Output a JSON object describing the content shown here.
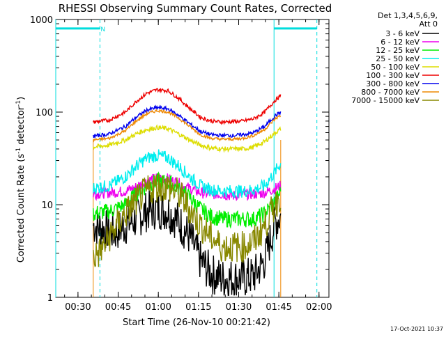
{
  "chart_data": {
    "type": "line",
    "title": "RHESSI Observing Summary Count Rates, Corrected",
    "xlabel": "Start Time (26-Nov-10 00:21:42)",
    "ylabel_main": "Corrected Count Rate (s",
    "ylabel_sup1": "-1",
    "ylabel_mid": " detector",
    "ylabel_sup2": "-1",
    "ylabel_end": ")",
    "yscale": "log",
    "ylim": [
      1,
      1000
    ],
    "y_ticks": [
      {
        "value": 1,
        "label": "1"
      },
      {
        "value": 10,
        "label": "10"
      },
      {
        "value": 100,
        "label": "100"
      },
      {
        "value": 1000,
        "label": "1000"
      }
    ],
    "x_range_min": [
      0,
      102
    ],
    "x_ticks": [
      {
        "t": 8.3,
        "label": "00:30"
      },
      {
        "t": 23.3,
        "label": "00:45"
      },
      {
        "t": 38.3,
        "label": "01:00"
      },
      {
        "t": 53.3,
        "label": "01:15"
      },
      {
        "t": 68.3,
        "label": "01:30"
      },
      {
        "t": 83.3,
        "label": "01:45"
      },
      {
        "t": 98.3,
        "label": "02:00"
      }
    ],
    "legend_header": [
      "Det 1,3,4,5,6,9,",
      "Att 0"
    ],
    "legend_position": "right",
    "series": [
      {
        "name": "3 - 6 keV",
        "color": "#000000",
        "x": [
          14,
          18,
          22,
          26,
          30,
          34,
          38,
          42,
          46,
          50,
          54,
          58,
          62,
          66,
          70,
          74,
          78,
          82,
          84
        ],
        "y": [
          6,
          5.5,
          5,
          6,
          7,
          8.5,
          9,
          8.5,
          6.5,
          4.5,
          2.5,
          1.8,
          1.6,
          1.6,
          1.6,
          1.7,
          2.5,
          6.5,
          7.5
        ]
      },
      {
        "name": "6 - 12 keV",
        "color": "#ee00ee",
        "x": [
          14,
          20,
          26,
          30,
          34,
          38,
          42,
          46,
          50,
          54,
          58,
          62,
          66,
          70,
          74,
          78,
          82,
          84
        ],
        "y": [
          13,
          13.5,
          14,
          15.5,
          18,
          19.5,
          19,
          17,
          15,
          13.5,
          13,
          13,
          12.5,
          13,
          13,
          13.5,
          15,
          16
        ]
      },
      {
        "name": "12 - 25 keV",
        "color": "#00ee00",
        "x": [
          14,
          20,
          26,
          30,
          34,
          38,
          42,
          46,
          50,
          54,
          58,
          62,
          66,
          70,
          74,
          78,
          82,
          84
        ],
        "y": [
          8,
          8.5,
          10,
          13,
          16,
          18,
          17.5,
          15,
          12,
          9,
          7.5,
          7,
          7,
          7,
          7,
          8,
          11,
          14
        ]
      },
      {
        "name": "25 - 50 keV",
        "color": "#00eeee",
        "x": [
          14,
          20,
          26,
          30,
          34,
          38,
          42,
          46,
          50,
          54,
          58,
          62,
          66,
          70,
          74,
          78,
          82,
          84
        ],
        "y": [
          15,
          16,
          20,
          26,
          32,
          34,
          32,
          26,
          20,
          16,
          14.5,
          14,
          14,
          14,
          14.5,
          16,
          23,
          28
        ]
      },
      {
        "name": "50 - 100 keV",
        "color": "#dddd00",
        "x": [
          14,
          20,
          26,
          30,
          34,
          38,
          42,
          46,
          50,
          54,
          58,
          62,
          66,
          70,
          74,
          78,
          82,
          84
        ],
        "y": [
          42,
          44,
          50,
          58,
          65,
          68,
          66,
          58,
          50,
          44,
          41,
          40,
          40,
          40,
          42,
          48,
          60,
          66
        ]
      },
      {
        "name": "100 - 300 keV",
        "color": "#ee0000",
        "x": [
          14,
          20,
          26,
          30,
          34,
          38,
          42,
          46,
          50,
          54,
          58,
          62,
          66,
          70,
          74,
          78,
          82,
          84
        ],
        "y": [
          78,
          82,
          100,
          130,
          160,
          175,
          170,
          140,
          110,
          88,
          80,
          78,
          79,
          80,
          85,
          100,
          135,
          150
        ]
      },
      {
        "name": "300 - 800 keV",
        "color": "#0000ee",
        "x": [
          14,
          20,
          26,
          30,
          34,
          38,
          42,
          46,
          50,
          54,
          58,
          62,
          66,
          70,
          74,
          78,
          82,
          84
        ],
        "y": [
          55,
          58,
          70,
          88,
          105,
          112,
          108,
          92,
          75,
          62,
          57,
          56,
          56,
          57,
          60,
          70,
          92,
          100
        ]
      },
      {
        "name": "800 - 7000 keV",
        "color": "#ee8800",
        "x": [
          14,
          20,
          26,
          30,
          34,
          38,
          42,
          46,
          50,
          54,
          58,
          62,
          66,
          70,
          74,
          78,
          82,
          84
        ],
        "y": [
          50,
          52,
          63,
          80,
          96,
          104,
          100,
          86,
          70,
          57,
          52,
          51,
          51,
          52,
          56,
          65,
          85,
          92
        ]
      },
      {
        "name": "7000 - 15000 keV",
        "color": "#888800",
        "x": [
          14,
          16,
          18,
          20,
          22,
          26,
          30,
          34,
          38,
          42,
          46,
          50,
          54,
          58,
          62,
          66,
          70,
          74,
          78,
          82,
          84
        ],
        "y": [
          2.7,
          3,
          3.5,
          4.5,
          5.5,
          8,
          11,
          14,
          16,
          15.5,
          13,
          9,
          6,
          4.5,
          3.5,
          3.5,
          3.5,
          4,
          6,
          10,
          13
        ]
      }
    ],
    "attenuator_bars": [
      {
        "t_start": 0,
        "t_end": 16.5,
        "value": 800,
        "label": ""
      },
      {
        "t_start": 16.5,
        "t_end": 17.5,
        "value": 800,
        "label": "N"
      },
      {
        "t_start": 81.5,
        "t_end": 97.5,
        "value": 800,
        "label": ""
      }
    ],
    "cyan_solid_lines_t": [
      0,
      81.5
    ],
    "cyan_dashed_lines_t": [
      16.5,
      97.5
    ],
    "orange_steps_t": [
      14,
      84
    ],
    "footer_date": "17-Oct-2021 10:37"
  }
}
